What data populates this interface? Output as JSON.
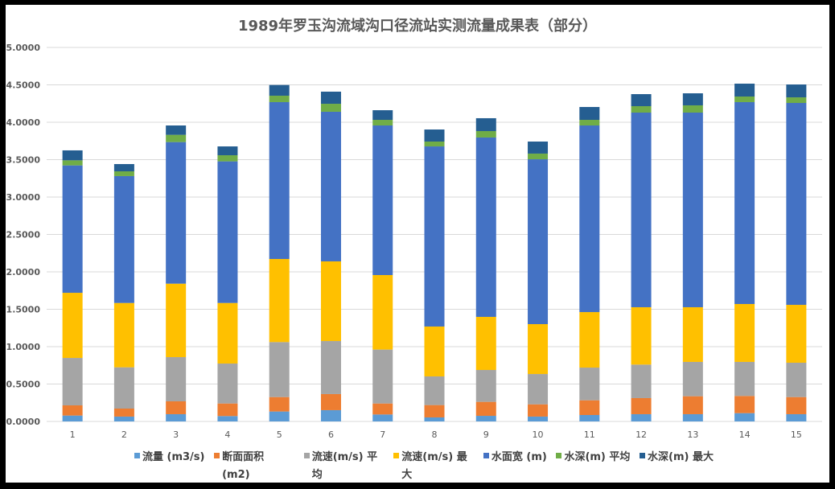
{
  "chart_data": {
    "type": "bar",
    "stacked": true,
    "title": "1989年罗玉沟流域沟口径流站实测流量成果表（部分）",
    "xlabel": "",
    "ylabel": "",
    "ylim": [
      0,
      5
    ],
    "yticks": [
      "0.0000",
      "0.5000",
      "1.0000",
      "1.5000",
      "2.0000",
      "2.5000",
      "3.0000",
      "3.5000",
      "4.0000",
      "4.5000",
      "5.0000"
    ],
    "categories": [
      "1",
      "2",
      "3",
      "4",
      "5",
      "6",
      "7",
      "8",
      "9",
      "10",
      "11",
      "12",
      "13",
      "14",
      "15"
    ],
    "grid": true,
    "legend_position": "bottom",
    "series": [
      {
        "name": "流量 (m3/s)",
        "color": "#5B9BD5",
        "values": [
          0.079,
          0.065,
          0.097,
          0.072,
          0.133,
          0.151,
          0.093,
          0.054,
          0.075,
          0.065,
          0.086,
          0.097,
          0.097,
          0.111,
          0.097
        ]
      },
      {
        "name": "断面面积 (m2)",
        "color": "#ED7D31",
        "values": [
          0.136,
          0.107,
          0.172,
          0.168,
          0.193,
          0.215,
          0.147,
          0.165,
          0.187,
          0.164,
          0.197,
          0.215,
          0.24,
          0.23,
          0.229
        ]
      },
      {
        "name": "流速(m/s) 平均",
        "color": "#A5A5A5",
        "values": [
          0.634,
          0.552,
          0.591,
          0.534,
          0.735,
          0.709,
          0.721,
          0.383,
          0.426,
          0.405,
          0.437,
          0.448,
          0.459,
          0.455,
          0.459
        ]
      },
      {
        "name": "流速(m/s) 最大",
        "color": "#FFC000",
        "values": [
          0.871,
          0.86,
          0.982,
          0.81,
          1.111,
          1.065,
          0.996,
          0.667,
          0.71,
          0.667,
          0.742,
          0.767,
          0.731,
          0.774,
          0.774
        ]
      },
      {
        "name": "水面宽 (m)",
        "color": "#4472C4",
        "values": [
          1.703,
          1.696,
          1.893,
          1.893,
          2.097,
          2.0,
          2.0,
          2.408,
          2.398,
          2.204,
          2.495,
          2.602,
          2.602,
          2.699,
          2.699
        ]
      },
      {
        "name": "水深(m) 平均",
        "color": "#70AD47",
        "values": [
          0.068,
          0.064,
          0.097,
          0.082,
          0.086,
          0.107,
          0.075,
          0.065,
          0.086,
          0.076,
          0.075,
          0.086,
          0.097,
          0.075,
          0.075
        ]
      },
      {
        "name": "水深(m) 最大",
        "color": "#255E91",
        "values": [
          0.133,
          0.097,
          0.125,
          0.118,
          0.143,
          0.162,
          0.129,
          0.161,
          0.172,
          0.161,
          0.172,
          0.161,
          0.161,
          0.172,
          0.172
        ]
      }
    ]
  }
}
